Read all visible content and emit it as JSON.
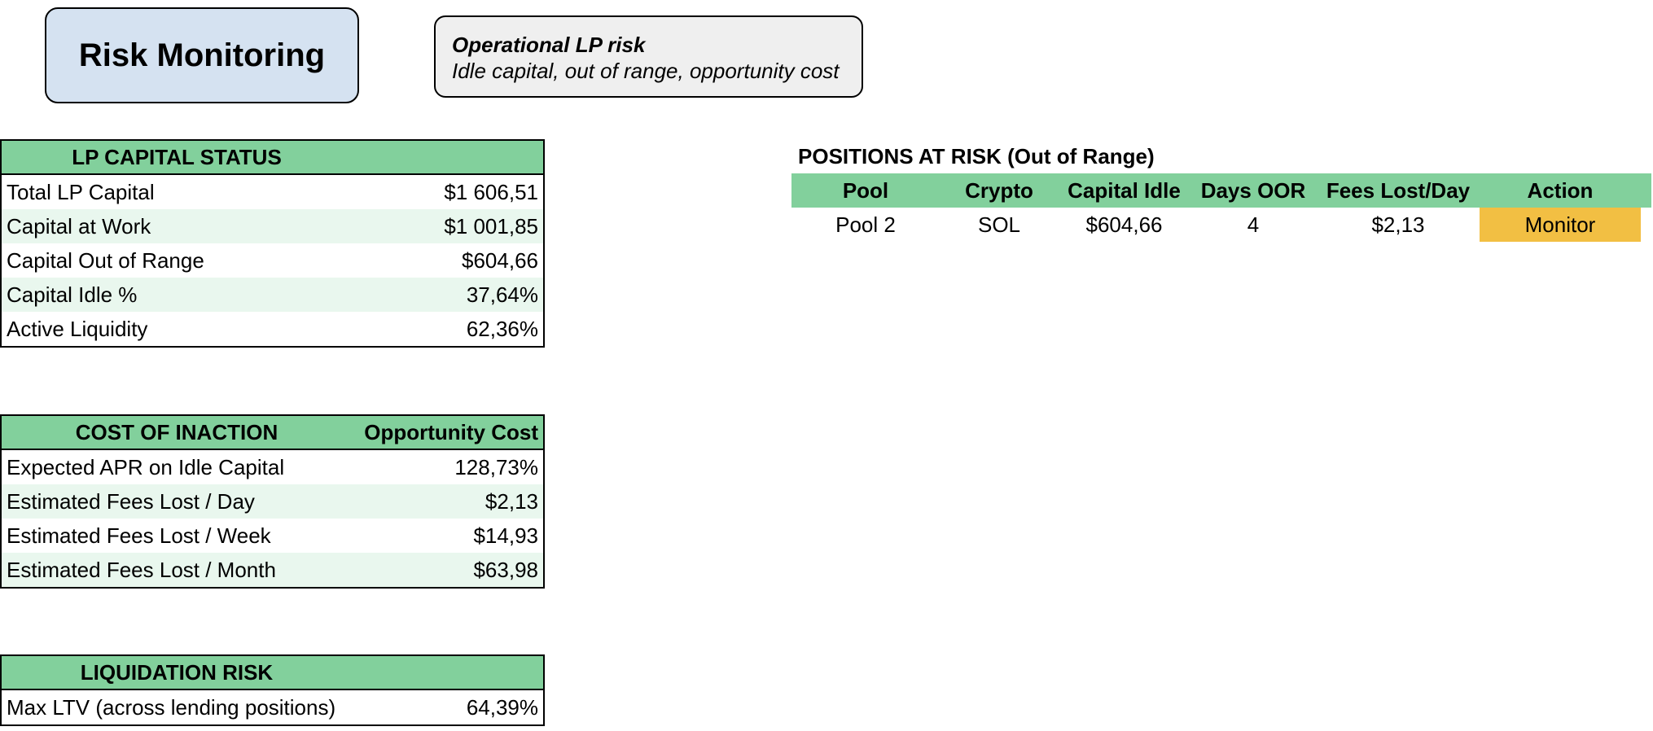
{
  "header": {
    "title": "Risk Monitoring",
    "note_title": "Operational LP risk",
    "note_subtitle": "Idle capital, out of range, opportunity cost"
  },
  "lp_capital_status": {
    "header": "LP CAPITAL STATUS",
    "rows": [
      {
        "label": "Total LP Capital",
        "value": "$1 606,51"
      },
      {
        "label": "Capital at Work",
        "value": "$1 001,85"
      },
      {
        "label": "Capital Out of Range",
        "value": "$604,66"
      },
      {
        "label": "Capital Idle %",
        "value": "37,64%"
      },
      {
        "label": "Active Liquidity",
        "value": "62,36%"
      }
    ]
  },
  "cost_of_inaction": {
    "header": "COST OF INACTION",
    "header_value": "Opportunity Cost",
    "rows": [
      {
        "label": "Expected APR on Idle Capital",
        "value": "128,73%"
      },
      {
        "label": "Estimated Fees Lost / Day",
        "value": "$2,13"
      },
      {
        "label": "Estimated Fees Lost / Week",
        "value": "$14,93"
      },
      {
        "label": "Estimated Fees Lost / Month",
        "value": "$63,98"
      }
    ]
  },
  "liquidation_risk": {
    "header": "LIQUIDATION RISK",
    "rows": [
      {
        "label": "Max LTV (across lending positions)",
        "value": "64,39%"
      }
    ]
  },
  "positions_at_risk": {
    "title": "POSITIONS AT RISK (Out of Range)",
    "columns": [
      "Pool",
      "Crypto",
      "Capital Idle",
      "Days OOR",
      "Fees Lost/Day",
      "Action"
    ],
    "rows": [
      {
        "pool": "Pool 2",
        "crypto": "SOL",
        "capital_idle": "$604,66",
        "days_oor": "4",
        "fees_lost_day": "$2,13",
        "action": "Monitor"
      }
    ]
  },
  "colors": {
    "header_green": "#82d09c",
    "row_shade": "#e9f7ee",
    "title_card": "#d5e2f1",
    "note_card": "#efefef",
    "action_monitor": "#f2bf43"
  }
}
